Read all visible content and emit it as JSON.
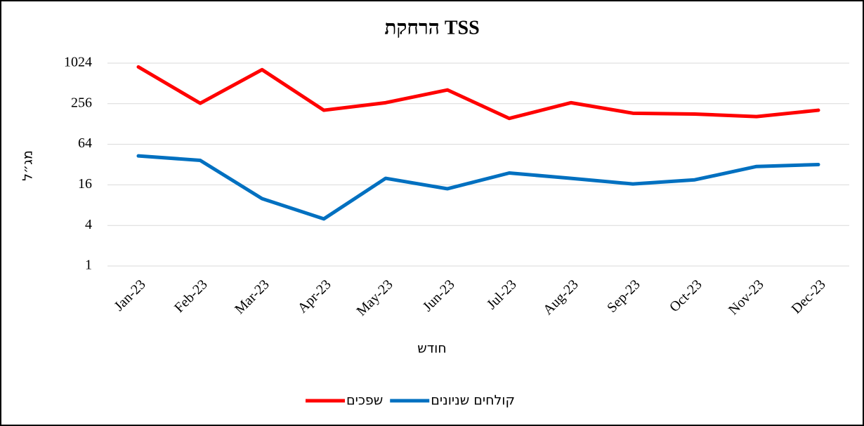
{
  "chart_data": {
    "type": "line",
    "title": "הרחקת TSS",
    "x_label": "חודש",
    "y_label": "מג״ל",
    "categories": [
      "Jan-23",
      "Feb-23",
      "Mar-23",
      "Apr-23",
      "May-23",
      "Jun-23",
      "Jul-23",
      "Aug-23",
      "Sep-23",
      "Oct-23",
      "Nov-23",
      "Dec-23"
    ],
    "series": [
      {
        "name": "שפכים",
        "color": "#ff0000",
        "values": [
          900,
          260,
          820,
          205,
          265,
          410,
          155,
          265,
          185,
          180,
          165,
          205
        ]
      },
      {
        "name": "קולחים שניונים",
        "color": "#0070c0",
        "values": [
          43,
          37,
          10,
          5,
          20,
          14,
          24,
          20,
          16.5,
          19,
          30,
          32
        ]
      }
    ],
    "ylim": [
      1,
      1024
    ],
    "yticks": [
      1,
      4,
      16,
      64,
      256,
      1024
    ],
    "log_scale": true,
    "log_base": 2,
    "grid": true,
    "legend": "bottom"
  }
}
